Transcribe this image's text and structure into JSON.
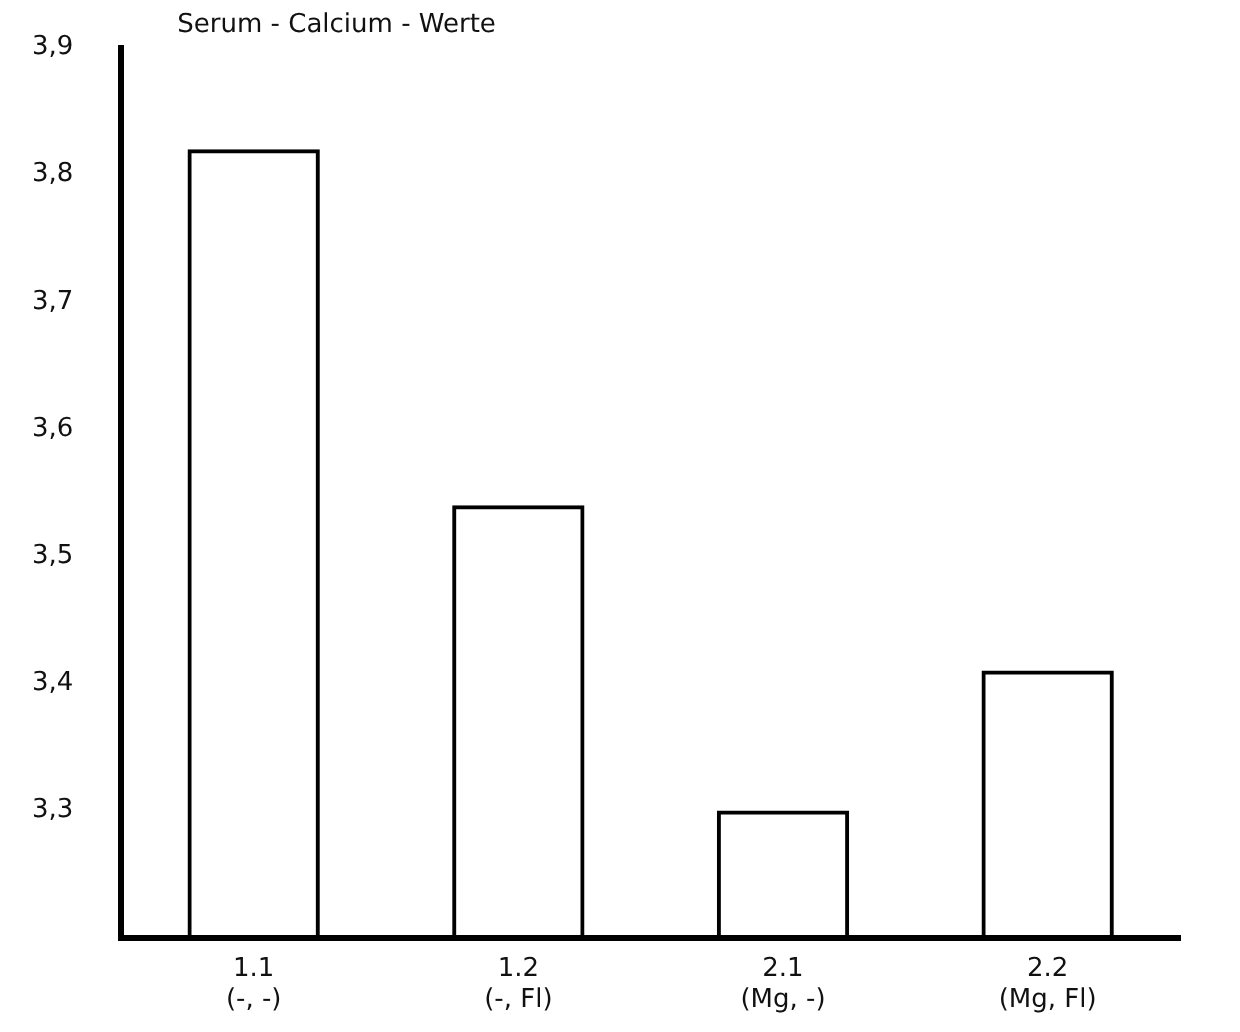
{
  "chart_data": {
    "type": "bar",
    "title": "Serum - Calcium - Werte",
    "categories": [
      "1.1\n(-, -)",
      "1.2\n(-, Fl)",
      "2.1\n(Mg, -)",
      "2.2\n(Mg, Fl)"
    ],
    "values": [
      3.82,
      3.54,
      3.3,
      3.41
    ],
    "color": "#000000",
    "ylim": [
      3.2,
      3.9
    ],
    "yticks": [
      {
        "value": 3.3,
        "label": "3,3"
      },
      {
        "value": 3.4,
        "label": "3,4"
      },
      {
        "value": 3.5,
        "label": "3,5"
      },
      {
        "value": 3.6,
        "label": "3,6"
      },
      {
        "value": 3.7,
        "label": "3,7"
      },
      {
        "value": 3.8,
        "label": "3,8"
      },
      {
        "value": 3.9,
        "label": "3,9"
      }
    ],
    "grid": false,
    "legend": false
  }
}
